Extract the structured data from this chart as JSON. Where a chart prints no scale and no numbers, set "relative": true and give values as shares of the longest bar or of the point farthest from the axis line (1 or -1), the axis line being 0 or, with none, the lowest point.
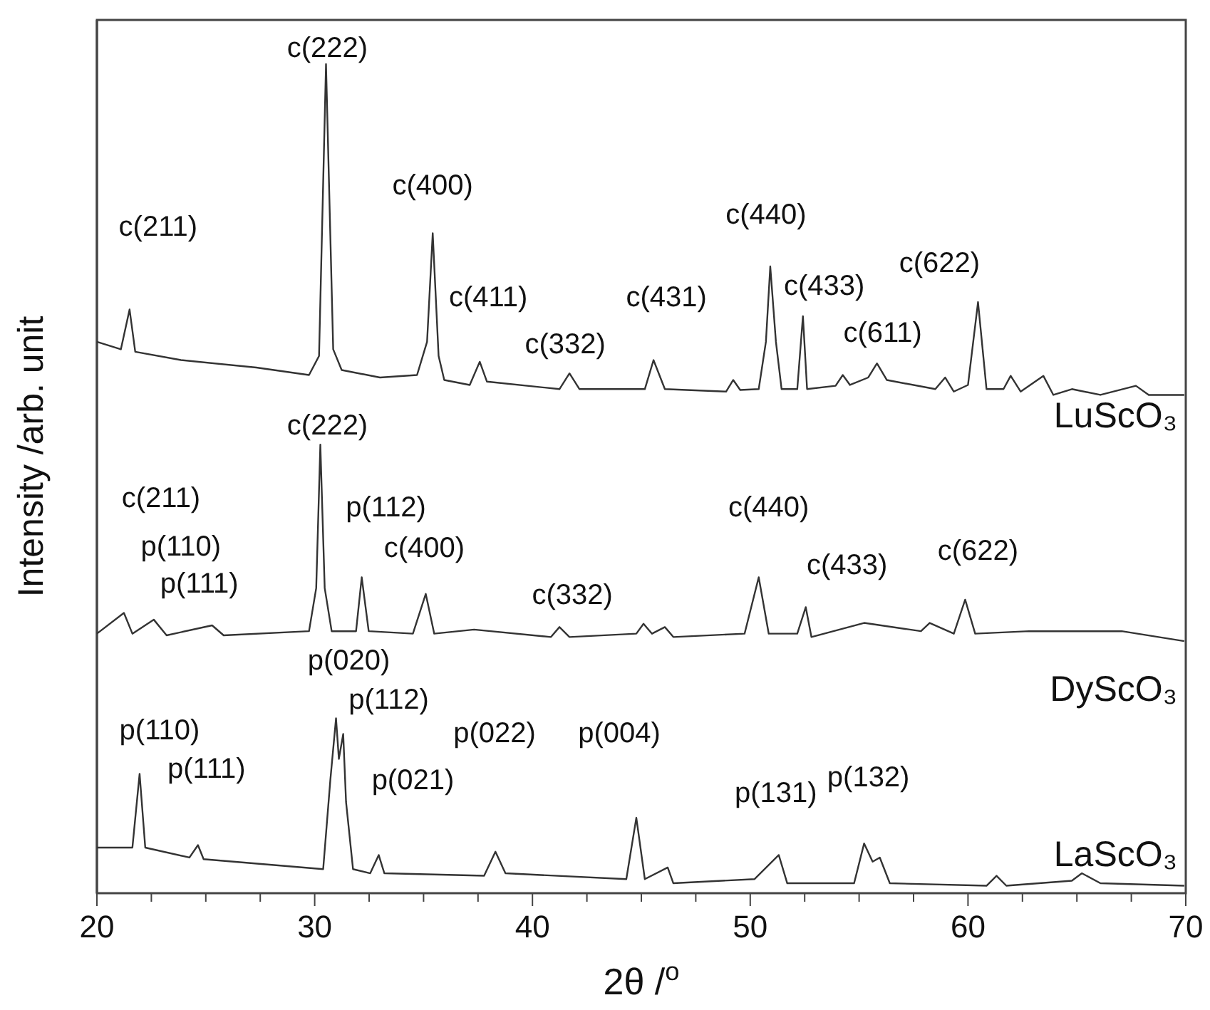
{
  "chart_data": {
    "type": "line",
    "relative": true,
    "xlabel": "2θ /$^{o}$",
    "ylabel": "Intensity /arb. unit",
    "xlim": [
      20,
      70
    ],
    "xticks": [
      20,
      {
        "value": 22.5,
        "label": null
      },
      {
        "value": 25,
        "label": null
      },
      {
        "value": 27.5,
        "label": null
      },
      30,
      {
        "value": 32.5,
        "label": null
      },
      {
        "value": 35,
        "label": null
      },
      {
        "value": 37.5,
        "label": null
      },
      40,
      {
        "value": 42.5,
        "label": null
      },
      {
        "value": 45,
        "label": null
      },
      {
        "value": 47.5,
        "label": null
      },
      50,
      {
        "value": 52.5,
        "label": null
      },
      {
        "value": 55,
        "label": null
      },
      {
        "value": 57.5,
        "label": null
      },
      60,
      {
        "value": 62.5,
        "label": null
      },
      {
        "value": 65,
        "label": null
      },
      {
        "value": 67.5,
        "label": null
      },
      70
    ],
    "series": [
      {
        "name": "LuScO₃",
        "color": "#333333",
        "x": [
          20.0,
          21.1,
          21.5,
          21.76,
          23.86,
          27.32,
          29.74,
          30.2,
          30.52,
          30.85,
          31.24,
          33.0,
          34.7,
          35.16,
          35.42,
          35.69,
          35.95,
          37.12,
          37.58,
          37.91,
          41.24,
          41.7,
          42.16,
          45.16,
          45.56,
          46.08,
          48.89,
          49.22,
          49.54,
          50.39,
          50.72,
          50.92,
          51.18,
          51.44,
          52.16,
          52.42,
          52.61,
          53.92,
          54.25,
          54.58,
          55.42,
          55.82,
          56.27,
          58.5,
          58.95,
          59.35,
          60.0,
          60.46,
          60.85,
          61.63,
          61.96,
          62.42,
          63.46,
          63.92,
          64.77,
          66.08,
          67.71,
          68.3,
          69.93
        ],
        "values": [
          0.665,
          0.656,
          0.704,
          0.653,
          0.643,
          0.634,
          0.625,
          0.648,
          1.0,
          0.656,
          0.631,
          0.622,
          0.625,
          0.665,
          0.796,
          0.648,
          0.619,
          0.613,
          0.641,
          0.617,
          0.608,
          0.627,
          0.608,
          0.608,
          0.643,
          0.608,
          0.605,
          0.619,
          0.607,
          0.608,
          0.665,
          0.756,
          0.665,
          0.608,
          0.608,
          0.696,
          0.608,
          0.612,
          0.625,
          0.613,
          0.622,
          0.639,
          0.619,
          0.608,
          0.622,
          0.605,
          0.613,
          0.713,
          0.608,
          0.608,
          0.624,
          0.605,
          0.624,
          0.601,
          0.608,
          0.601,
          0.612,
          0.601,
          0.601
        ]
      },
      {
        "name": "DyScO₃",
        "color": "#333333",
        "x": [
          20.0,
          21.24,
          21.63,
          22.61,
          23.2,
          25.29,
          25.82,
          29.74,
          30.07,
          30.26,
          30.46,
          30.78,
          31.9,
          32.16,
          32.48,
          34.51,
          35.1,
          35.49,
          37.32,
          40.85,
          41.24,
          41.7,
          44.77,
          45.1,
          45.49,
          46.08,
          46.47,
          49.74,
          50.39,
          50.85,
          52.16,
          52.55,
          52.81,
          55.23,
          57.84,
          58.24,
          59.35,
          59.87,
          60.33,
          62.81,
          67.06,
          69.93
        ],
        "values": [
          0.313,
          0.338,
          0.313,
          0.33,
          0.311,
          0.323,
          0.311,
          0.316,
          0.368,
          0.541,
          0.368,
          0.316,
          0.316,
          0.381,
          0.316,
          0.313,
          0.361,
          0.313,
          0.318,
          0.309,
          0.321,
          0.309,
          0.313,
          0.325,
          0.313,
          0.321,
          0.309,
          0.313,
          0.381,
          0.313,
          0.313,
          0.345,
          0.309,
          0.326,
          0.316,
          0.326,
          0.313,
          0.354,
          0.313,
          0.316,
          0.316,
          0.304
        ]
      },
      {
        "name": "LaScO₃",
        "color": "#333333",
        "x": [
          20.0,
          21.63,
          21.96,
          22.22,
          24.25,
          24.64,
          24.9,
          30.39,
          30.72,
          30.98,
          31.11,
          31.31,
          31.44,
          31.76,
          32.55,
          32.94,
          33.2,
          37.78,
          38.3,
          38.76,
          44.31,
          44.77,
          45.16,
          46.21,
          46.47,
          50.2,
          51.31,
          51.7,
          54.77,
          55.23,
          55.62,
          55.95,
          56.41,
          60.85,
          61.31,
          61.76,
          64.77,
          65.23,
          66.08,
          69.93
        ],
        "values": [
          0.055,
          0.055,
          0.144,
          0.055,
          0.043,
          0.058,
          0.041,
          0.029,
          0.137,
          0.211,
          0.162,
          0.192,
          0.11,
          0.029,
          0.024,
          0.046,
          0.024,
          0.021,
          0.05,
          0.024,
          0.017,
          0.091,
          0.017,
          0.031,
          0.012,
          0.017,
          0.046,
          0.012,
          0.012,
          0.06,
          0.038,
          0.043,
          0.012,
          0.009,
          0.021,
          0.009,
          0.015,
          0.024,
          0.012,
          0.009
        ]
      }
    ],
    "annotations": [
      {
        "text": "c(211)",
        "x": 21.5,
        "y": 0.704
      },
      {
        "text": "c(222)",
        "x": 30.52,
        "y": 1.0
      },
      {
        "text": "c(400)",
        "x": 35.42,
        "y": 0.796
      },
      {
        "text": "c(411)",
        "x": 37.58,
        "y": 0.641
      },
      {
        "text": "c(332)",
        "x": 41.7,
        "y": 0.627
      },
      {
        "text": "c(431)",
        "x": 45.56,
        "y": 0.643
      },
      {
        "text": "c(440)",
        "x": 50.92,
        "y": 0.756
      },
      {
        "text": "c(433)",
        "x": 52.42,
        "y": 0.696
      },
      {
        "text": "c(611)",
        "x": 55.82,
        "y": 0.639
      },
      {
        "text": "c(622)",
        "x": 60.46,
        "y": 0.713
      },
      "c(211)",
      {
        "text": "p(110)",
        "x": 22.61,
        "y": 0.33
      },
      {
        "text": "p(111)",
        "x": 25.29,
        "y": 0.323
      },
      {
        "text": "c(222)",
        "x": 30.26,
        "y": 0.541
      },
      {
        "text": "p(112)",
        "x": 32.16,
        "y": 0.381
      },
      {
        "text": "c(400)",
        "x": 35.1,
        "y": 0.361
      },
      {
        "text": "c(332)",
        "x": 41.24,
        "y": 0.321
      },
      {
        "text": "c(440)",
        "x": 50.39,
        "y": 0.381
      },
      {
        "text": "c(433)",
        "x": 52.55,
        "y": 0.345
      },
      {
        "text": "c(622)",
        "x": 59.87,
        "y": 0.354
      },
      {
        "text": "p(110)",
        "x": 21.96,
        "y": 0.144
      },
      {
        "text": "p(111)",
        "x": 24.64,
        "y": 0.058
      },
      {
        "text": "p(020)",
        "x": 30.98,
        "y": 0.211
      },
      {
        "text": "p(112)",
        "x": 31.31,
        "y": 0.192
      },
      {
        "text": "p(021)",
        "x": 32.94,
        "y": 0.046
      },
      "p(022)",
      {
        "text": "p(004)",
        "x": 44.77,
        "y": 0.091
      },
      {
        "text": "p(131)",
        "x": 51.31,
        "y": 0.046
      },
      {
        "text": "p(132)",
        "x": 55.23,
        "y": 0.06
      }
    ]
  }
}
